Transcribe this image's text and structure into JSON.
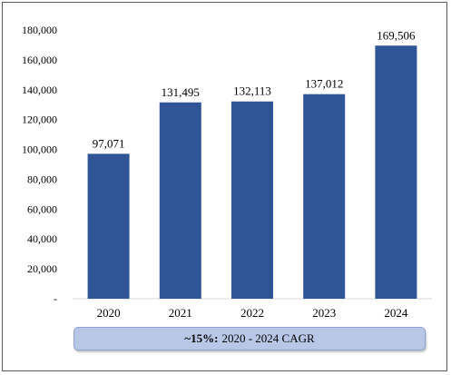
{
  "chart_data": {
    "type": "bar",
    "categories": [
      "2020",
      "2021",
      "2022",
      "2023",
      "2024"
    ],
    "values": [
      97071,
      131495,
      132113,
      137012,
      169506
    ],
    "value_labels": [
      "97,071",
      "131,495",
      "132,113",
      "137,012",
      "169,506"
    ],
    "ylim": [
      0,
      180000
    ],
    "y_ticks": [
      0,
      20000,
      40000,
      60000,
      80000,
      100000,
      120000,
      140000,
      160000,
      180000
    ],
    "y_tick_labels": [
      "-",
      "20,000",
      "40,000",
      "60,000",
      "80,000",
      "100,000",
      "120,000",
      "140,000",
      "160,000",
      "180,000"
    ],
    "grid": false,
    "legend": "none",
    "bar_color": "#2f5597"
  },
  "cagr": {
    "value": "~15%:",
    "text": "2020 - 2024 CAGR",
    "box_color": "#b8c7e6"
  }
}
